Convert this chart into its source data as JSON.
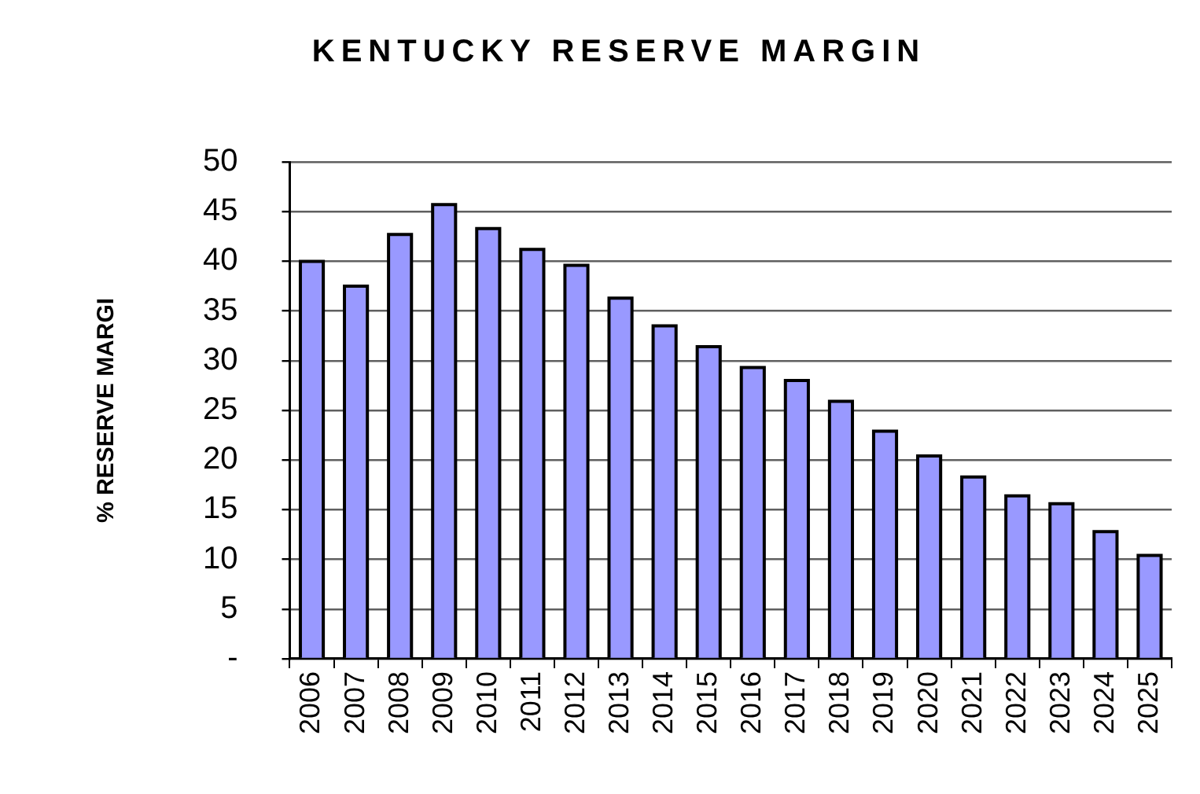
{
  "chart_data": {
    "type": "bar",
    "title": "KENTUCKY RESERVE MARGIN",
    "ylabel": "% RESERVE MARGI",
    "categories": [
      "2006",
      "2007",
      "2008",
      "2009",
      "2010",
      "2011",
      "2012",
      "2013",
      "2014",
      "2015",
      "2016",
      "2017",
      "2018",
      "2019",
      "2020",
      "2021",
      "2022",
      "2023",
      "2024",
      "2025"
    ],
    "values": [
      40,
      37.5,
      42.7,
      45.7,
      43.3,
      41.2,
      39.6,
      36.3,
      33.5,
      31.4,
      29.3,
      28,
      25.9,
      22.9,
      20.4,
      18.3,
      16.4,
      15.6,
      12.8,
      10.4
    ],
    "color": "#9999ff",
    "ylim": [
      0,
      50
    ],
    "yticks": [
      {
        "value": 0,
        "label": "-"
      },
      5,
      10,
      15,
      20,
      25,
      30,
      35,
      40,
      45,
      50
    ],
    "grid": "y",
    "legend": false
  }
}
